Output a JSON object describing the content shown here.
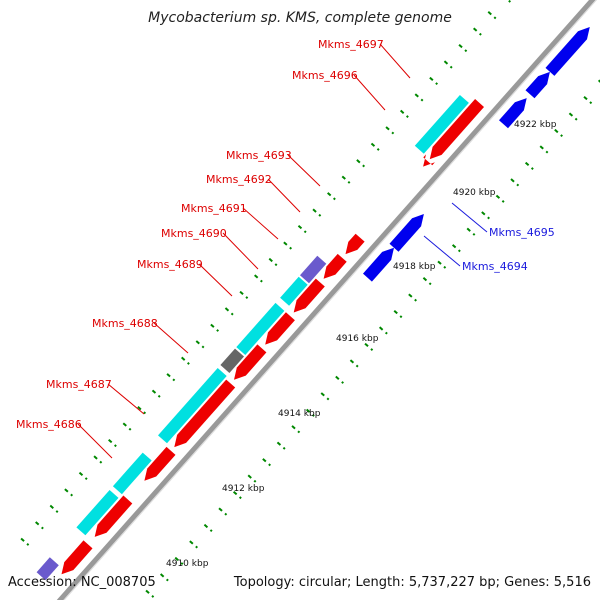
{
  "title": "Mycobacterium sp. KMS, complete genome",
  "footer": {
    "accession": "Accession: NC_008705",
    "summary": "Topology: circular; Length: 5,737,227 bp; Genes: 5,516"
  },
  "colors": {
    "cds_reverse": "#ee0000",
    "cds_cyan": "#00e0e0",
    "cds_forward": "#0000ee",
    "cds_purple": "#6a5acd",
    "cds_gray": "#666666",
    "backbone": "#999999",
    "label_red": "#dd0000",
    "label_blue": "#1a1add",
    "tick": "#008800"
  },
  "kbp_labels": [
    "4910 kbp",
    "4912 kbp",
    "4914 kbp",
    "4916 kbp",
    "4918 kbp",
    "4920 kbp",
    "4922 kbp"
  ],
  "genes": [
    {
      "name": "Mkms_4686",
      "color": "red"
    },
    {
      "name": "Mkms_4687",
      "color": "red"
    },
    {
      "name": "Mkms_4688",
      "color": "red"
    },
    {
      "name": "Mkms_4689",
      "color": "red"
    },
    {
      "name": "Mkms_4690",
      "color": "red"
    },
    {
      "name": "Mkms_4691",
      "color": "red"
    },
    {
      "name": "Mkms_4692",
      "color": "red"
    },
    {
      "name": "Mkms_4693",
      "color": "red"
    },
    {
      "name": "Mkms_4694",
      "color": "blue"
    },
    {
      "name": "Mkms_4695",
      "color": "blue"
    },
    {
      "name": "Mkms_4696",
      "color": "red"
    },
    {
      "name": "Mkms_4697",
      "color": "red"
    }
  ]
}
